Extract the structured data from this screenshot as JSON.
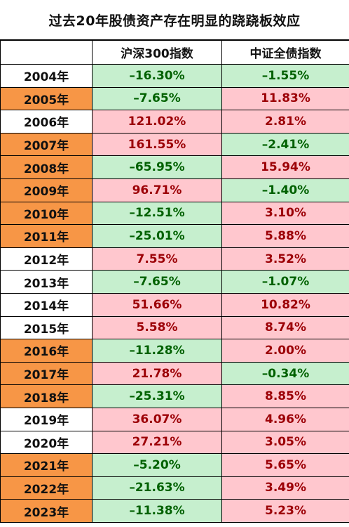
{
  "title": "过去20年股债资产存在明显的跷跷板效应",
  "colors": {
    "year_highlight": "#f79646",
    "positive_fill": "#ffc7ce",
    "positive_text": "#9c0006",
    "negative_fill": "#c6efce",
    "negative_text": "#006100"
  },
  "chart_data": {
    "type": "table",
    "title": "过去20年股债资产存在明显的跷跷板效应",
    "columns": [
      "",
      "沪深300指数",
      "中证全债指数"
    ],
    "rows": [
      {
        "year": "2004年",
        "highlight": false,
        "hs300": "-16.30%",
        "bond": "-1.55%"
      },
      {
        "year": "2005年",
        "highlight": true,
        "hs300": "-7.65%",
        "bond": "11.83%"
      },
      {
        "year": "2006年",
        "highlight": false,
        "hs300": "121.02%",
        "bond": "2.81%"
      },
      {
        "year": "2007年",
        "highlight": true,
        "hs300": "161.55%",
        "bond": "-2.41%"
      },
      {
        "year": "2008年",
        "highlight": true,
        "hs300": "-65.95%",
        "bond": "15.94%"
      },
      {
        "year": "2009年",
        "highlight": true,
        "hs300": "96.71%",
        "bond": "-1.40%"
      },
      {
        "year": "2010年",
        "highlight": true,
        "hs300": "-12.51%",
        "bond": "3.10%"
      },
      {
        "year": "2011年",
        "highlight": true,
        "hs300": "-25.01%",
        "bond": "5.88%"
      },
      {
        "year": "2012年",
        "highlight": false,
        "hs300": "7.55%",
        "bond": "3.52%"
      },
      {
        "year": "2013年",
        "highlight": false,
        "hs300": "-7.65%",
        "bond": "-1.07%"
      },
      {
        "year": "2014年",
        "highlight": false,
        "hs300": "51.66%",
        "bond": "10.82%"
      },
      {
        "year": "2015年",
        "highlight": false,
        "hs300": "5.58%",
        "bond": "8.74%"
      },
      {
        "year": "2016年",
        "highlight": true,
        "hs300": "-11.28%",
        "bond": "2.00%"
      },
      {
        "year": "2017年",
        "highlight": true,
        "hs300": "21.78%",
        "bond": "-0.34%"
      },
      {
        "year": "2018年",
        "highlight": true,
        "hs300": "-25.31%",
        "bond": "8.85%"
      },
      {
        "year": "2019年",
        "highlight": false,
        "hs300": "36.07%",
        "bond": "4.96%"
      },
      {
        "year": "2020年",
        "highlight": false,
        "hs300": "27.21%",
        "bond": "3.05%"
      },
      {
        "year": "2021年",
        "highlight": true,
        "hs300": "-5.20%",
        "bond": "5.65%"
      },
      {
        "year": "2022年",
        "highlight": true,
        "hs300": "-21.63%",
        "bond": "3.49%"
      },
      {
        "year": "2023年",
        "highlight": true,
        "hs300": "-11.38%",
        "bond": "5.23%"
      }
    ]
  }
}
